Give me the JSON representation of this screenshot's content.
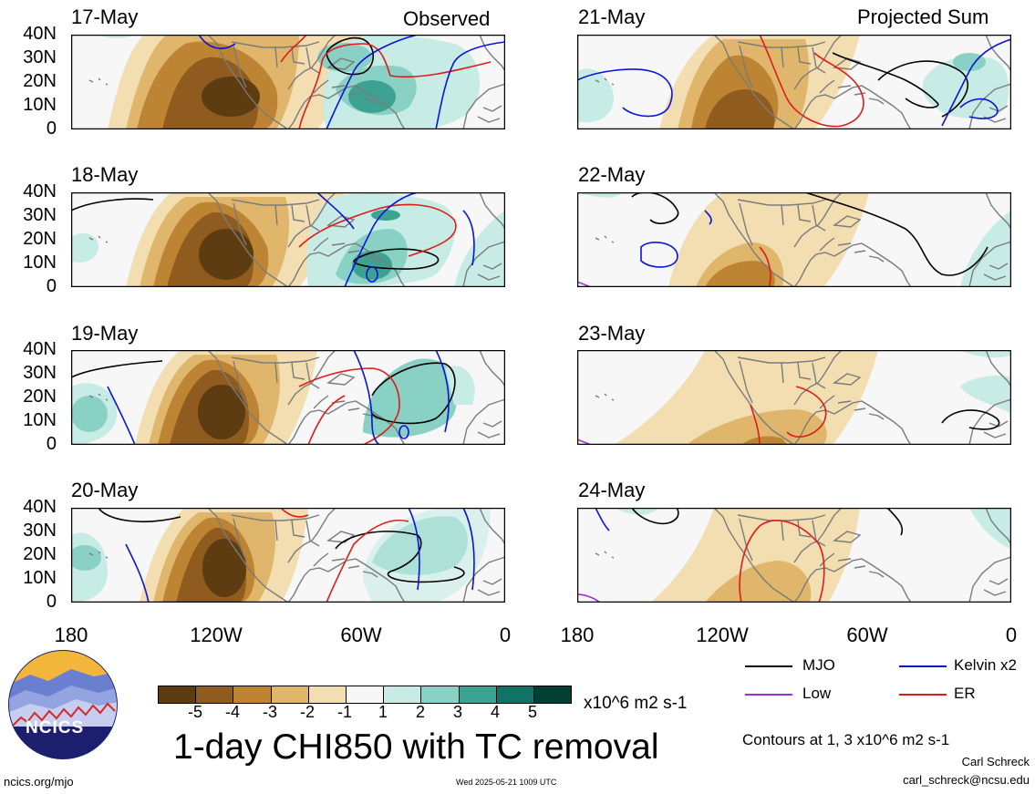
{
  "panels": {
    "left": [
      {
        "date": "17-May",
        "corner": "Observed"
      },
      {
        "date": "18-May",
        "corner": ""
      },
      {
        "date": "19-May",
        "corner": ""
      },
      {
        "date": "20-May",
        "corner": ""
      }
    ],
    "right": [
      {
        "date": "21-May",
        "corner": "Projected Sum"
      },
      {
        "date": "22-May",
        "corner": ""
      },
      {
        "date": "23-May",
        "corner": ""
      },
      {
        "date": "24-May",
        "corner": ""
      }
    ]
  },
  "lat_labels": [
    "40N",
    "30N",
    "20N",
    "10N",
    "0"
  ],
  "lon_labels": [
    "180",
    "120W",
    "60W",
    "0"
  ],
  "colorbar": {
    "labels": [
      "-5",
      "-4",
      "-3",
      "-2",
      "-1",
      "1",
      "2",
      "3",
      "4",
      "5"
    ],
    "colors": [
      "#5e3c11",
      "#8f5b1e",
      "#bd8433",
      "#dfb66b",
      "#f2deb1",
      "#f7f7f7",
      "#c7ebe5",
      "#88d1c4",
      "#3ea293",
      "#117265",
      "#003f33"
    ],
    "units": "x10^6 m2 s-1"
  },
  "title": "1-day CHI850 with TC removal",
  "legend": [
    {
      "label": "MJO",
      "color": "#000000"
    },
    {
      "label": "Kelvin x2",
      "color": "#0a14d8"
    },
    {
      "label": "Low",
      "color": "#9b2fd9"
    },
    {
      "label": "ER",
      "color": "#e01b1b"
    }
  ],
  "contours_note": "Contours at 1, 3 x10^6 m2 s-1",
  "author": "Carl Schreck",
  "email": "carl_schreck@ncsu.edu",
  "site": "ncics.org/mjo",
  "timestamp": "Wed 2025-05-21 1009 UTC",
  "logo_text": "NCICS"
}
